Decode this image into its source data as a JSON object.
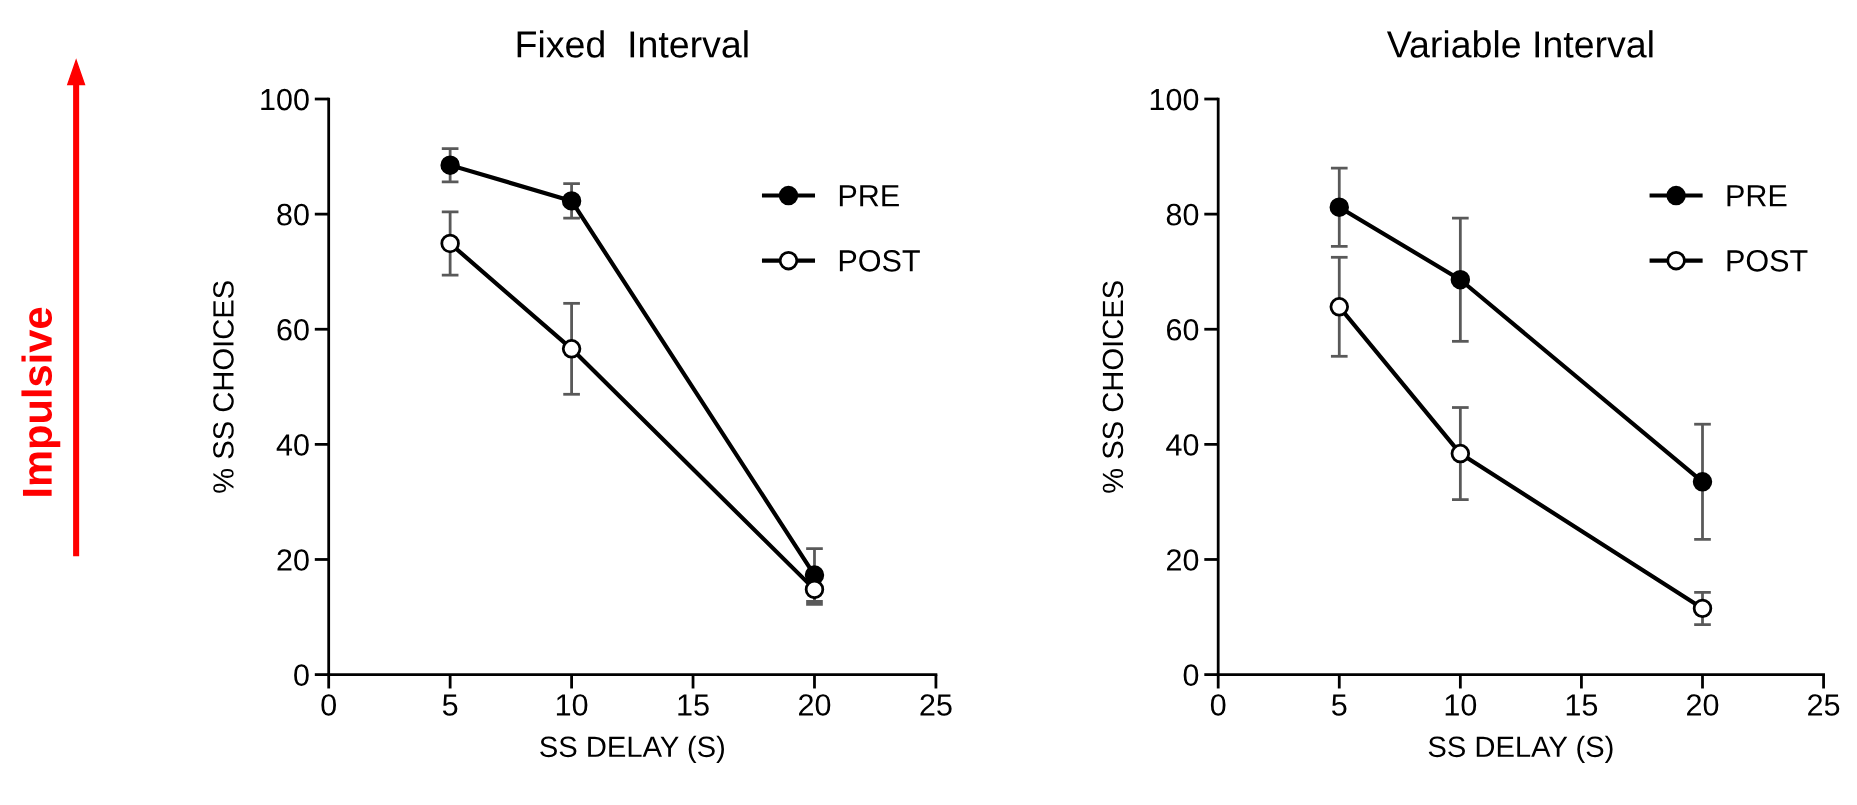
{
  "chart_data": [
    {
      "type": "line",
      "title": "Fixed  Interval",
      "xlabel": "SS DELAY (S)",
      "ylabel": "% SS CHOICES",
      "x": [
        5,
        10,
        20
      ],
      "xlim": [
        0,
        25
      ],
      "xticks": [
        0,
        5,
        10,
        15,
        20,
        25
      ],
      "ylim": [
        0,
        100
      ],
      "yticks": [
        0,
        20,
        40,
        60,
        80,
        100
      ],
      "legend": "top right",
      "marker": "circle",
      "grid": false,
      "annotations": [
        "Impulsive"
      ],
      "series": [
        {
          "name": "PRE",
          "color": "#000000",
          "values": [
            88.5,
            82.3,
            17.3
          ],
          "errors": [
            2.9,
            3,
            4.6
          ]
        },
        {
          "name": "POST",
          "color": "#000000",
          "values": [
            74.9,
            56.6,
            14.8
          ],
          "errors": [
            5.5,
            7.9,
            2.6
          ]
        }
      ]
    },
    {
      "type": "line",
      "title": "Variable Interval",
      "xlabel": "SS DELAY (S)",
      "ylabel": "% SS CHOICES",
      "x": [
        5,
        10,
        20
      ],
      "xlim": [
        0,
        25
      ],
      "xticks": [
        0,
        5,
        10,
        15,
        20,
        25
      ],
      "ylim": [
        0,
        100
      ],
      "yticks": [
        0,
        20,
        40,
        60,
        80,
        100
      ],
      "legend": "top right",
      "marker": "circle",
      "grid": false,
      "series": [
        {
          "name": "PRE",
          "color": "#000000",
          "values": [
            81.2,
            68.6,
            33.5
          ],
          "errors": [
            6.8,
            10.7,
            10
          ]
        },
        {
          "name": "POST",
          "color": "#000000",
          "values": [
            63.9,
            38.4,
            11.5
          ],
          "errors": [
            8.6,
            8,
            2.8
          ]
        }
      ]
    }
  ]
}
